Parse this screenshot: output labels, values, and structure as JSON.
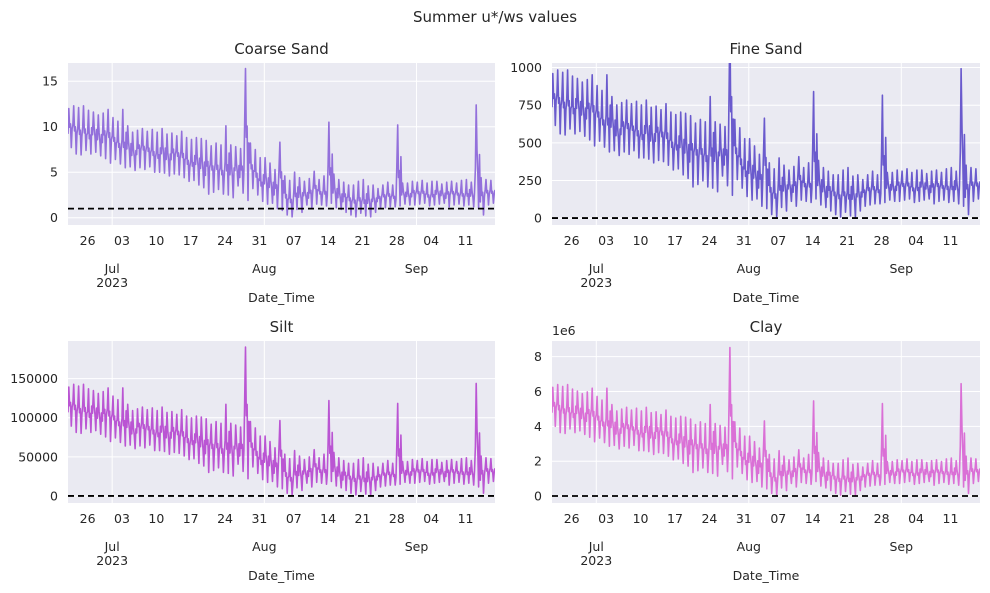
{
  "suptitle": "Summer u*/ws values",
  "chart_data": [
    {
      "type": "line",
      "title": "Coarse Sand",
      "xlabel": "Date_Time",
      "ylabel": "",
      "x_range": [
        "2023-06-22",
        "2023-09-17"
      ],
      "ylim": [
        -0.8,
        17.0
      ],
      "yticks": [
        0,
        5,
        10,
        15
      ],
      "ytick_labels": [
        "0",
        "5",
        "10",
        "15"
      ],
      "threshold": 1.0,
      "color": "#9370db",
      "grid": true,
      "x": [
        "2023-06-22",
        "2023-06-23",
        "2023-06-24",
        "2023-06-25",
        "2023-06-26",
        "2023-06-27",
        "2023-06-28",
        "2023-06-29",
        "2023-06-30",
        "2023-07-01",
        "2023-07-02",
        "2023-07-03",
        "2023-07-04",
        "2023-07-05",
        "2023-07-06",
        "2023-07-07",
        "2023-07-08",
        "2023-07-09",
        "2023-07-10",
        "2023-07-11",
        "2023-07-12",
        "2023-07-13",
        "2023-07-14",
        "2023-07-15",
        "2023-07-16",
        "2023-07-17",
        "2023-07-18",
        "2023-07-19",
        "2023-07-20",
        "2023-07-21",
        "2023-07-22",
        "2023-07-23",
        "2023-07-24",
        "2023-07-25",
        "2023-07-26",
        "2023-07-27",
        "2023-07-28",
        "2023-07-29",
        "2023-07-30",
        "2023-07-31",
        "2023-08-01",
        "2023-08-02",
        "2023-08-03",
        "2023-08-04",
        "2023-08-05",
        "2023-08-06",
        "2023-08-07",
        "2023-08-08",
        "2023-08-09",
        "2023-08-10",
        "2023-08-11",
        "2023-08-12",
        "2023-08-13",
        "2023-08-14",
        "2023-08-15",
        "2023-08-16",
        "2023-08-17",
        "2023-08-18",
        "2023-08-19",
        "2023-08-20",
        "2023-08-21",
        "2023-08-22",
        "2023-08-23",
        "2023-08-24",
        "2023-08-25",
        "2023-08-26",
        "2023-08-27",
        "2023-08-28",
        "2023-08-29",
        "2023-08-30",
        "2023-08-31",
        "2023-09-01",
        "2023-09-02",
        "2023-09-03",
        "2023-09-04",
        "2023-09-05",
        "2023-09-06",
        "2023-09-07",
        "2023-09-08",
        "2023-09-09",
        "2023-09-10",
        "2023-09-11",
        "2023-09-12",
        "2023-09-13",
        "2023-09-14",
        "2023-09-15",
        "2023-09-16",
        "2023-09-17"
      ],
      "high": [
        12.0,
        12.3,
        12.1,
        12.3,
        11.8,
        11.6,
        11.3,
        11.5,
        11.9,
        11.0,
        10.6,
        11.9,
        10.1,
        9.4,
        9.6,
        9.8,
        9.5,
        9.7,
        9.4,
        9.8,
        9.2,
        9.3,
        9.0,
        9.5,
        8.8,
        8.6,
        8.8,
        8.7,
        8.5,
        7.9,
        8.2,
        8.0,
        10.1,
        8.0,
        7.8,
        7.6,
        16.4,
        8.2,
        7.5,
        6.6,
        6.6,
        6.0,
        5.3,
        8.3,
        4.6,
        4.1,
        5.0,
        4.4,
        4.0,
        4.3,
        5.1,
        4.2,
        4.6,
        10.5,
        4.8,
        4.2,
        3.9,
        3.6,
        3.6,
        4.0,
        4.2,
        3.5,
        3.6,
        3.2,
        3.6,
        3.9,
        3.6,
        10.2,
        3.8,
        3.8,
        4.0,
        3.9,
        4.1,
        3.8,
        4.0,
        4.0,
        3.7,
        3.9,
        4.0,
        3.8,
        4.1,
        4.2,
        3.9,
        12.4,
        4.4,
        4.2,
        4.1,
        4.3
      ],
      "low": [
        7.7,
        7.0,
        6.9,
        7.4,
        7.0,
        7.2,
        6.8,
        6.5,
        6.0,
        6.4,
        5.9,
        5.5,
        5.6,
        5.2,
        5.5,
        5.3,
        5.6,
        5.0,
        5.0,
        4.9,
        4.6,
        4.8,
        4.7,
        4.4,
        4.0,
        4.1,
        3.6,
        3.3,
        2.6,
        2.8,
        3.1,
        2.6,
        2.5,
        2.2,
        3.5,
        2.7,
        1.9,
        3.2,
        2.5,
        1.8,
        1.5,
        1.6,
        1.0,
        0.8,
        0.3,
        0.1,
        0.9,
        0.6,
        1.4,
        1.0,
        1.5,
        1.4,
        1.3,
        1.6,
        1.1,
        0.9,
        0.6,
        0.3,
        0.1,
        0.5,
        0.2,
        0.1,
        0.6,
        1.0,
        1.1,
        1.2,
        1.2,
        1.3,
        1.5,
        1.4,
        1.4,
        1.5,
        1.6,
        1.3,
        1.4,
        1.5,
        1.6,
        1.2,
        1.4,
        1.5,
        1.3,
        1.4,
        1.2,
        1.0,
        0.3,
        1.4,
        1.6,
        1.7
      ],
      "xtick_labels": [
        "26",
        "03",
        "10",
        "17",
        "24",
        "31",
        "07",
        "14",
        "21",
        "28",
        "04",
        "11"
      ],
      "xtick_dates": [
        "2023-06-26",
        "2023-07-03",
        "2023-07-10",
        "2023-07-17",
        "2023-07-24",
        "2023-07-31",
        "2023-08-07",
        "2023-08-14",
        "2023-08-21",
        "2023-08-28",
        "2023-09-04",
        "2023-09-11"
      ],
      "month_labels": [
        "Jul\n2023",
        "Aug",
        "Sep"
      ],
      "month_dates": [
        "2023-07-01",
        "2023-08-01",
        "2023-09-01"
      ]
    },
    {
      "type": "line",
      "title": "Fine Sand",
      "xlabel": "Date_Time",
      "ylabel": "",
      "x_range": [
        "2023-06-22",
        "2023-09-17"
      ],
      "ylim": [
        -45,
        1030
      ],
      "yticks": [
        0,
        250,
        500,
        750,
        1000
      ],
      "ytick_labels": [
        "0",
        "250",
        "500",
        "750",
        "1000"
      ],
      "threshold": 1.0,
      "color": "#6a5acd",
      "grid": true,
      "scale_from_first": 80.0
    },
    {
      "type": "line",
      "title": "Silt",
      "xlabel": "Date_Time",
      "ylabel": "",
      "x_range": [
        "2023-06-22",
        "2023-09-17"
      ],
      "ylim": [
        -9000,
        198000
      ],
      "yticks": [
        0,
        50000,
        100000,
        150000
      ],
      "ytick_labels": [
        "0",
        "50000",
        "100000",
        "150000"
      ],
      "threshold": 1.0,
      "color": "#ba55d3",
      "grid": true,
      "scale_from_first": 11600.0
    },
    {
      "type": "line",
      "title": "Clay",
      "xlabel": "Date_Time",
      "ylabel": "",
      "x_range": [
        "2023-06-22",
        "2023-09-17"
      ],
      "ylim": [
        -400000.0,
        8900000.0
      ],
      "yticks": [
        0,
        2000000,
        4000000,
        6000000,
        8000000
      ],
      "ytick_labels": [
        "0",
        "2",
        "4",
        "6",
        "8"
      ],
      "offset_label": "1e6",
      "threshold": 1.0,
      "color": "#da70d6",
      "grid": true,
      "scale_from_first": 520000.0
    }
  ]
}
